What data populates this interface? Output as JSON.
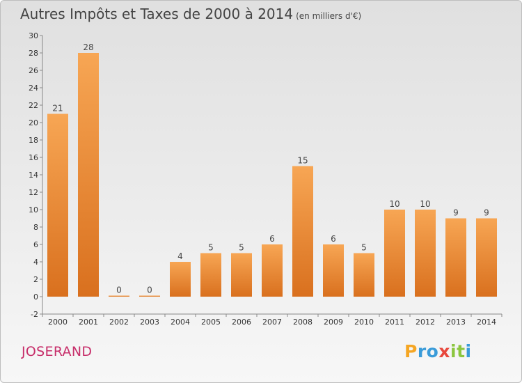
{
  "chart_data": {
    "type": "bar",
    "title": "Autres Impôts et Taxes de 2000 à 2014",
    "subtitle": "(en milliers d'€)",
    "categories": [
      "2000",
      "2001",
      "2002",
      "2003",
      "2004",
      "2005",
      "2006",
      "2007",
      "2008",
      "2009",
      "2010",
      "2011",
      "2012",
      "2013",
      "2014"
    ],
    "values": [
      21,
      28,
      0,
      0,
      4,
      5,
      5,
      6,
      15,
      6,
      5,
      10,
      10,
      9,
      9
    ],
    "ylim": [
      -2,
      30
    ],
    "yticks": [
      -2,
      0,
      2,
      4,
      6,
      8,
      10,
      12,
      14,
      16,
      18,
      20,
      22,
      24,
      26,
      28,
      30
    ],
    "xlabel": "",
    "ylabel": "",
    "grid": false,
    "bar_color": "#f0953f"
  },
  "location": "JOSERAND",
  "logo": {
    "letters": [
      "P",
      "r",
      "o",
      "x",
      "i",
      "t",
      "i"
    ],
    "colors": [
      "#f5a623",
      "#3a9bd9",
      "#3a9bd9",
      "#e8473c",
      "#8cc63f",
      "#8cc63f",
      "#3a9bd9"
    ]
  }
}
